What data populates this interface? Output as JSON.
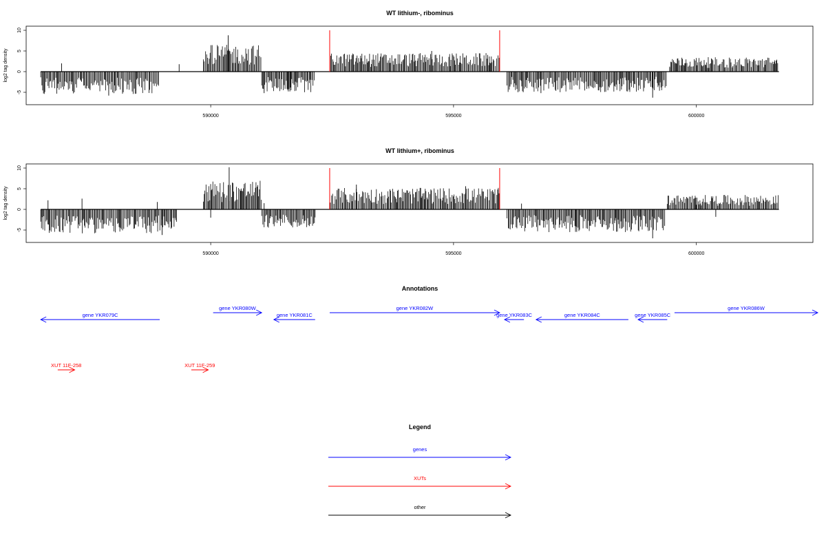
{
  "chart_data": [
    {
      "type": "bar",
      "title": "WT lithium-, ribominus",
      "xlabel": "",
      "ylabel": "log2 tag density",
      "xlim": [
        586200,
        602400
      ],
      "ylim": [
        -8,
        11
      ],
      "xticks": [
        590000,
        595000,
        600000
      ],
      "yticks": [
        -5,
        0,
        5,
        10
      ],
      "grid": false,
      "bar_color": "#000000",
      "marker_color": "#ff0000",
      "markers": [
        {
          "x": 592450,
          "y": 10
        },
        {
          "x": 595950,
          "y": 10
        }
      ],
      "segments": [
        {
          "start": 586500,
          "end": 588950,
          "sign": -1,
          "amplitude": 5.5,
          "spikes": [
            {
              "x": 586930,
              "y": 2
            },
            {
              "x": 589350,
              "y": 1.8
            },
            {
              "x": 587900,
              "y": -5.8
            }
          ]
        },
        {
          "start": 589850,
          "end": 591050,
          "sign": 1,
          "amplitude": 6.5,
          "spikes": [
            {
              "x": 590360,
              "y": 8.8
            }
          ]
        },
        {
          "start": 591050,
          "end": 592150,
          "sign": -1,
          "amplitude": 5,
          "spikes": [
            {
              "x": 591100,
              "y": -5.2
            }
          ]
        },
        {
          "start": 592450,
          "end": 595950,
          "sign": 1,
          "amplitude": 4.5,
          "spikes": [
            {
              "x": 594550,
              "y": 5
            }
          ]
        },
        {
          "start": 596100,
          "end": 599400,
          "sign": -1,
          "amplitude": 5,
          "spikes": [
            {
              "x": 599100,
              "y": -6.3
            },
            {
              "x": 596800,
              "y": -5.2
            }
          ]
        },
        {
          "start": 599450,
          "end": 601700,
          "sign": 1,
          "amplitude": 3.5,
          "spikes": [
            {
              "x": 599450,
              "y": 1
            }
          ]
        }
      ]
    },
    {
      "type": "bar",
      "title": "WT lithium+, ribominus",
      "xlabel": "",
      "ylabel": "log2 tag density",
      "xlim": [
        586200,
        602400
      ],
      "ylim": [
        -8,
        11
      ],
      "xticks": [
        590000,
        595000,
        600000
      ],
      "yticks": [
        -5,
        0,
        5,
        10
      ],
      "grid": false,
      "bar_color": "#000000",
      "marker_color": "#ff0000",
      "markers": [
        {
          "x": 592450,
          "y": 10
        },
        {
          "x": 595950,
          "y": 10
        }
      ],
      "segments": [
        {
          "start": 586500,
          "end": 589300,
          "sign": -1,
          "amplitude": 5.8,
          "spikes": [
            {
              "x": 589000,
              "y": -6.2
            },
            {
              "x": 586650,
              "y": 2.2
            },
            {
              "x": 587350,
              "y": 2.6
            },
            {
              "x": 588900,
              "y": 1.8
            }
          ]
        },
        {
          "start": 589850,
          "end": 591050,
          "sign": 1,
          "amplitude": 7,
          "spikes": [
            {
              "x": 590380,
              "y": 10.2
            },
            {
              "x": 590000,
              "y": -2
            }
          ]
        },
        {
          "start": 591050,
          "end": 592150,
          "sign": -1,
          "amplitude": 4.5,
          "spikes": [
            {
              "x": 591100,
              "y": 1.5
            }
          ]
        },
        {
          "start": 592450,
          "end": 595950,
          "sign": 1,
          "amplitude": 5.2,
          "spikes": [
            {
              "x": 593000,
              "y": 6
            },
            {
              "x": 595250,
              "y": 5.6
            }
          ]
        },
        {
          "start": 596100,
          "end": 599350,
          "sign": -1,
          "amplitude": 5.5,
          "spikes": [
            {
              "x": 599100,
              "y": -7
            },
            {
              "x": 596400,
              "y": 1.4
            }
          ]
        },
        {
          "start": 599400,
          "end": 601700,
          "sign": 1,
          "amplitude": 3.5,
          "spikes": [
            {
              "x": 600400,
              "y": -1.8
            }
          ]
        }
      ]
    }
  ],
  "annotations": {
    "title": "Annotations",
    "features": [
      {
        "label": "gene YKR079C",
        "start": 588950,
        "end": 586500,
        "row": 1,
        "color": "#0000ff"
      },
      {
        "label": "gene YKR080W",
        "start": 590050,
        "end": 591050,
        "row": 0,
        "color": "#0000ff"
      },
      {
        "label": "gene YKR081C",
        "start": 592150,
        "end": 591300,
        "row": 1,
        "color": "#0000ff"
      },
      {
        "label": "gene YKR082W",
        "start": 592450,
        "end": 595950,
        "row": 0,
        "color": "#0000ff"
      },
      {
        "label": "gene YKR083C",
        "start": 596450,
        "end": 596050,
        "row": 1,
        "color": "#0000ff"
      },
      {
        "label": "gene YKR084C",
        "start": 598600,
        "end": 596700,
        "row": 1,
        "color": "#0000ff"
      },
      {
        "label": "gene YKR085C",
        "start": 599400,
        "end": 598800,
        "row": 1,
        "color": "#0000ff"
      },
      {
        "label": "gene YKR086W",
        "start": 599550,
        "end": 602500,
        "row": 0,
        "color": "#0000ff"
      },
      {
        "label": "XUT 11F-258",
        "start": 586850,
        "end": 587200,
        "row": 2,
        "color": "#ff0000"
      },
      {
        "label": "XUT 11F-259",
        "start": 589600,
        "end": 589950,
        "row": 2,
        "color": "#ff0000"
      }
    ]
  },
  "legend": {
    "title": "Legend",
    "items": [
      {
        "label": "genes",
        "color": "#0000ff"
      },
      {
        "label": "XUTs",
        "color": "#ff0000"
      },
      {
        "label": "other",
        "color": "#000000"
      }
    ]
  }
}
